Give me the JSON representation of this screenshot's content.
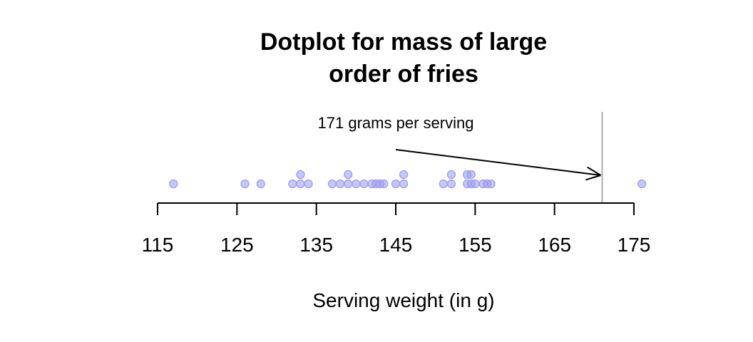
{
  "chart_data": {
    "type": "scatter",
    "title_lines": [
      "Dotplot for mass of large",
      "order of fries"
    ],
    "xlabel": "Serving weight (in g)",
    "ylabel": "",
    "xlim": [
      115,
      175
    ],
    "ticks": [
      115,
      125,
      135,
      145,
      155,
      165,
      175
    ],
    "tick_labels": [
      "115",
      "125",
      "135",
      "145",
      "155",
      "165",
      "175"
    ],
    "points": [
      {
        "x": 117,
        "stack": 0
      },
      {
        "x": 126,
        "stack": 0
      },
      {
        "x": 128,
        "stack": 0
      },
      {
        "x": 132,
        "stack": 0
      },
      {
        "x": 133,
        "stack": 0
      },
      {
        "x": 133,
        "stack": 1
      },
      {
        "x": 134,
        "stack": 0
      },
      {
        "x": 137,
        "stack": 0
      },
      {
        "x": 138,
        "stack": 0
      },
      {
        "x": 139,
        "stack": 0
      },
      {
        "x": 139,
        "stack": 1
      },
      {
        "x": 140,
        "stack": 0
      },
      {
        "x": 141,
        "stack": 0
      },
      {
        "x": 142,
        "stack": 0
      },
      {
        "x": 142.5,
        "stack": 0
      },
      {
        "x": 143,
        "stack": 0
      },
      {
        "x": 143.5,
        "stack": 0
      },
      {
        "x": 145,
        "stack": 0
      },
      {
        "x": 146,
        "stack": 0
      },
      {
        "x": 146,
        "stack": 1
      },
      {
        "x": 151,
        "stack": 0
      },
      {
        "x": 152,
        "stack": 0
      },
      {
        "x": 152,
        "stack": 1
      },
      {
        "x": 154,
        "stack": 0
      },
      {
        "x": 154,
        "stack": 1
      },
      {
        "x": 154.5,
        "stack": 0
      },
      {
        "x": 154.5,
        "stack": 1
      },
      {
        "x": 155,
        "stack": 0
      },
      {
        "x": 156,
        "stack": 0
      },
      {
        "x": 156.5,
        "stack": 0
      },
      {
        "x": 157,
        "stack": 0
      },
      {
        "x": 176,
        "stack": 0
      }
    ],
    "reference_line": {
      "x": 171,
      "color": "#aaaaaa"
    },
    "annotation": {
      "text": "171 grams per serving",
      "arrow_to_x": 171
    },
    "point_color": "#9999ee",
    "grid": false
  }
}
